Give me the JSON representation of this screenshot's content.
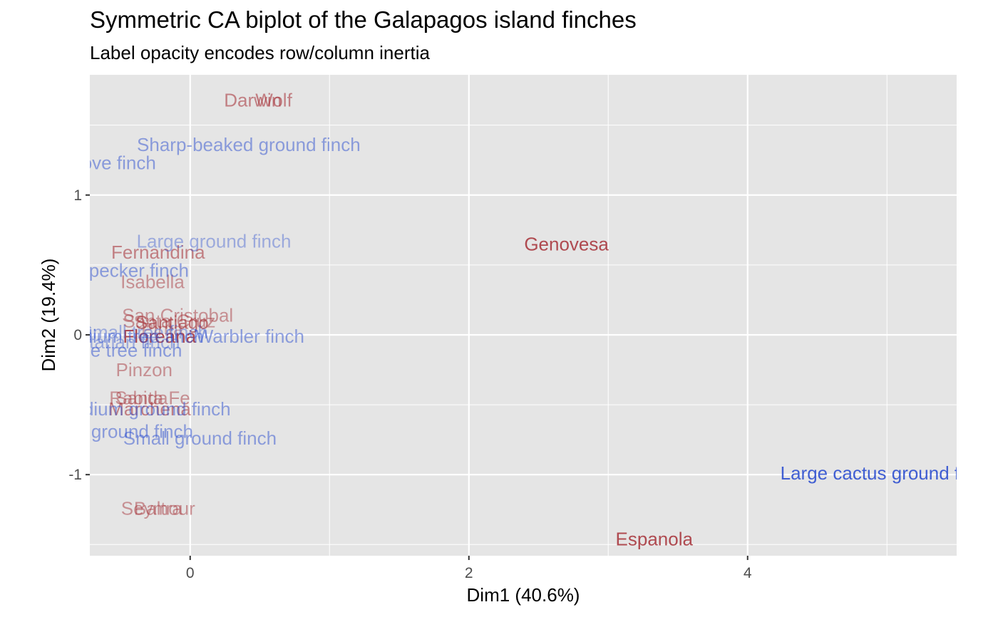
{
  "chart_data": {
    "type": "scatter",
    "title": "Symmetric CA biplot of the Galapagos island finches",
    "subtitle": "Label opacity encodes row/column inertia",
    "xlabel": "Dim1 (40.6%)",
    "ylabel": "Dim2 (19.4%)",
    "xlim": [
      -0.72,
      5.5
    ],
    "ylim": [
      -1.58,
      1.86
    ],
    "x_ticks": [
      0,
      2,
      4
    ],
    "y_ticks": [
      -1,
      0,
      1
    ],
    "x_tick_labels": [
      "0",
      "2",
      "4"
    ],
    "y_tick_labels": [
      "-1",
      "0",
      "1"
    ],
    "grid": true,
    "colors": {
      "panel_bg": "#e5e5e5",
      "grid": "#ffffff",
      "rows": "#a8393f",
      "columns": "#2e4fcf"
    },
    "series": [
      {
        "name": "",
        "points": [
          {
            "label": "Darwin",
            "x": 0.45,
            "y": 1.68,
            "alpha": 0.6
          },
          {
            "label": "Wolf",
            "x": 0.6,
            "y": 1.68,
            "alpha": 0.6
          },
          {
            "label": "Genovesa",
            "x": 2.7,
            "y": 0.65,
            "alpha": 0.9
          },
          {
            "label": "Fernandina",
            "x": -0.23,
            "y": 0.59,
            "alpha": 0.6
          },
          {
            "label": "Isabella",
            "x": -0.27,
            "y": 0.38,
            "alpha": 0.5
          },
          {
            "label": "San Cristobal",
            "x": -0.09,
            "y": 0.14,
            "alpha": 0.5
          },
          {
            "label": "Santa Cruz",
            "x": -0.15,
            "y": 0.1,
            "alpha": 0.5
          },
          {
            "label": "Santiago",
            "x": -0.13,
            "y": 0.09,
            "alpha": 0.7
          },
          {
            "label": "Pinta",
            "x": -0.2,
            "y": 0.04,
            "alpha": 0.4
          },
          {
            "label": "Floreana",
            "x": -0.22,
            "y": -0.01,
            "alpha": 0.9
          },
          {
            "label": "Pinzon",
            "x": -0.33,
            "y": -0.25,
            "alpha": 0.5
          },
          {
            "label": "Santa Fe",
            "x": -0.27,
            "y": -0.45,
            "alpha": 0.5
          },
          {
            "label": "Rabida",
            "x": -0.37,
            "y": -0.45,
            "alpha": 0.5
          },
          {
            "label": "Marchena",
            "x": -0.29,
            "y": -0.53,
            "alpha": 0.6
          },
          {
            "label": "Seymour",
            "x": -0.23,
            "y": -1.24,
            "alpha": 0.5
          },
          {
            "label": "Baltra",
            "x": -0.23,
            "y": -1.24,
            "alpha": 0.5
          },
          {
            "label": "Espanola",
            "x": 3.33,
            "y": -1.46,
            "alpha": 0.9
          }
        ]
      },
      {
        "name": "",
        "points": [
          {
            "label": "Sharp-beaked ground finch",
            "x": 0.42,
            "y": 1.36,
            "alpha": 0.5
          },
          {
            "label": "Mangrove finch",
            "x": -0.7,
            "y": 1.23,
            "alpha": 0.5
          },
          {
            "label": "Large ground finch",
            "x": 0.17,
            "y": 0.67,
            "alpha": 0.4
          },
          {
            "label": "Woodpecker finch",
            "x": -0.54,
            "y": 0.46,
            "alpha": 0.5
          },
          {
            "label": "Warbler finch",
            "x": 0.43,
            "y": -0.01,
            "alpha": 0.5
          },
          {
            "label": "Medium tree finch",
            "x": -0.43,
            "y": -0.01,
            "alpha": 0.5
          },
          {
            "label": "Small tree finch",
            "x": -0.33,
            "y": 0.02,
            "alpha": 0.4
          },
          {
            "label": "Vegetarian finch",
            "x": -0.55,
            "y": -0.05,
            "alpha": 0.4
          },
          {
            "label": "Large tree finch",
            "x": -0.52,
            "y": -0.11,
            "alpha": 0.5
          },
          {
            "label": "Medium ground finch",
            "x": -0.33,
            "y": -0.53,
            "alpha": 0.5
          },
          {
            "label": "Cactus ground finch",
            "x": -0.57,
            "y": -0.69,
            "alpha": 0.5
          },
          {
            "label": "Small ground finch",
            "x": 0.07,
            "y": -0.74,
            "alpha": 0.5
          },
          {
            "label": "Large cactus ground finch",
            "x": 5.0,
            "y": -0.99,
            "alpha": 0.9
          }
        ]
      }
    ]
  }
}
